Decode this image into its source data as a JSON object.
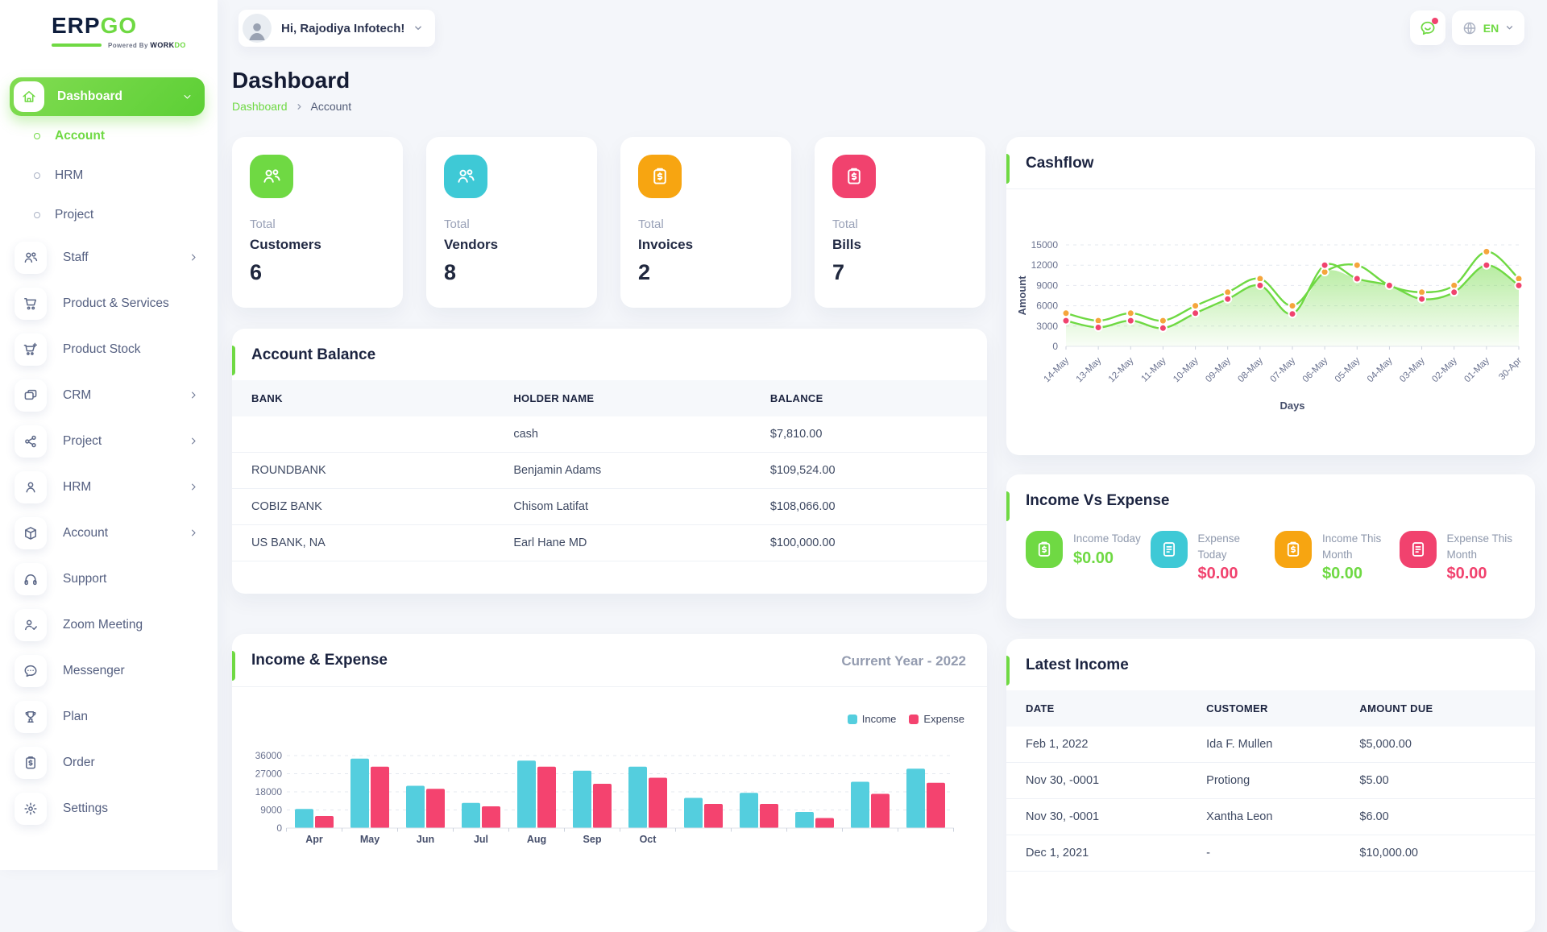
{
  "header": {
    "logo": {
      "text_primary": "ERP",
      "text_accent": "GO",
      "powered_prefix": "Powered By",
      "powered_brand": "WORK",
      "powered_accent": "DO"
    },
    "greeting": "Hi, Rajodiya Infotech!",
    "language": "EN"
  },
  "sidebar": {
    "items": [
      {
        "label": "Dashboard",
        "icon": "home",
        "style": "pill",
        "chevron": "down"
      },
      {
        "label": "Account",
        "style": "sub",
        "active": true
      },
      {
        "label": "HRM",
        "style": "sub"
      },
      {
        "label": "Project",
        "style": "sub"
      },
      {
        "label": "Staff",
        "icon": "users",
        "chevron": "right"
      },
      {
        "label": "Product & Services",
        "icon": "cart"
      },
      {
        "label": "Product Stock",
        "icon": "cart-plus"
      },
      {
        "label": "CRM",
        "icon": "crm",
        "chevron": "right"
      },
      {
        "label": "Project",
        "icon": "share",
        "chevron": "right"
      },
      {
        "label": "HRM",
        "icon": "user",
        "chevron": "right"
      },
      {
        "label": "Account",
        "icon": "box",
        "chevron": "right"
      },
      {
        "label": "Support",
        "icon": "headphones"
      },
      {
        "label": "Zoom Meeting",
        "icon": "user-check"
      },
      {
        "label": "Messenger",
        "icon": "chat"
      },
      {
        "label": "Plan",
        "icon": "trophy"
      },
      {
        "label": "Order",
        "icon": "clipboard-dollar"
      },
      {
        "label": "Settings",
        "icon": "gear"
      }
    ]
  },
  "page": {
    "title": "Dashboard",
    "breadcrumb": [
      "Dashboard",
      "Account"
    ]
  },
  "stat_cards": [
    {
      "prefix": "Total",
      "label": "Customers",
      "value": "6",
      "color": "#6fd943",
      "icon": "users"
    },
    {
      "prefix": "Total",
      "label": "Vendors",
      "value": "8",
      "color": "#3ec9d6",
      "icon": "users"
    },
    {
      "prefix": "Total",
      "label": "Invoices",
      "value": "2",
      "color": "#f7a511",
      "icon": "clipboard-dollar"
    },
    {
      "prefix": "Total",
      "label": "Bills",
      "value": "7",
      "color": "#f1426e",
      "icon": "clipboard-dollar"
    }
  ],
  "cards": {
    "cashflow": {
      "title": "Cashflow"
    },
    "account_balance": {
      "title": "Account Balance",
      "columns": [
        "BANK",
        "HOLDER NAME",
        "BALANCE"
      ],
      "rows": [
        [
          "",
          "cash",
          "$7,810.00"
        ],
        [
          "ROUNDBANK",
          "Benjamin Adams",
          "$109,524.00"
        ],
        [
          "COBIZ BANK",
          "Chisom Latifat",
          "$108,066.00"
        ],
        [
          "US BANK, NA",
          "Earl Hane MD",
          "$100,000.00"
        ]
      ]
    },
    "income_vs_expense": {
      "title": "Income Vs Expense",
      "items": [
        {
          "label": "Income Today",
          "value": "$0.00",
          "icon": "clipboard-dollar",
          "icon_color": "#6fd943",
          "value_color": "#6fd943"
        },
        {
          "label": "Expense Today",
          "value": "$0.00",
          "icon": "file-invoice",
          "icon_color": "#3ec9d6",
          "value_color": "#f1426e"
        },
        {
          "label": "Income This Month",
          "value": "$0.00",
          "icon": "clipboard-dollar",
          "icon_color": "#f7a511",
          "value_color": "#6fd943"
        },
        {
          "label": "Expense This Month",
          "value": "$0.00",
          "icon": "file-invoice",
          "icon_color": "#f1426e",
          "value_color": "#f1426e"
        }
      ]
    },
    "income_expense": {
      "title": "Income & Expense",
      "period": "Current Year - 2022"
    },
    "latest_income": {
      "title": "Latest Income",
      "columns": [
        "DATE",
        "CUSTOMER",
        "AMOUNT DUE"
      ],
      "rows": [
        [
          "Feb 1, 2022",
          "Ida F. Mullen",
          "$5,000.00"
        ],
        [
          "Nov 30, -0001",
          "Protiong",
          "$5.00"
        ],
        [
          "Nov 30, -0001",
          "Xantha Leon",
          "$6.00"
        ],
        [
          "Dec 1, 2021",
          "-",
          "$10,000.00"
        ]
      ]
    }
  },
  "chart_data": [
    {
      "id": "cashflow",
      "type": "area",
      "title": "Cashflow",
      "x": [
        "14-May",
        "13-May",
        "12-May",
        "11-May",
        "10-May",
        "09-May",
        "08-May",
        "07-May",
        "06-May",
        "05-May",
        "04-May",
        "03-May",
        "02-May",
        "01-May",
        "30-Apr"
      ],
      "series": [
        {
          "name": "Income",
          "color": "#f5a53c",
          "values": [
            4900,
            3800,
            4900,
            3800,
            6000,
            8000,
            10000,
            6000,
            11000,
            12000,
            9000,
            8000,
            9000,
            14000,
            10000
          ]
        },
        {
          "name": "Expense",
          "color": "#f0436e",
          "values": [
            3800,
            2800,
            3800,
            2700,
            4900,
            7000,
            9000,
            4800,
            12000,
            10000,
            9000,
            7000,
            8000,
            12000,
            9000
          ]
        }
      ],
      "line_color": "#6fd943",
      "fill_color": "#6fd943",
      "xlabel": "Days",
      "ylabel": "Amount",
      "ylim": [
        0,
        15000
      ],
      "ytick_step": 3000,
      "grid": true,
      "legend_position": "none"
    },
    {
      "id": "income-expense",
      "type": "bar",
      "title": "Income & Expense",
      "subtitle": "Current Year - 2022",
      "categories": [
        "Apr",
        "May",
        "Jun",
        "Jul",
        "Aug",
        "Sep",
        "Oct",
        "",
        "",
        "",
        "",
        ""
      ],
      "series": [
        {
          "name": "Income",
          "color": "#54cede",
          "values": [
            9500,
            34500,
            21000,
            12500,
            33500,
            28500,
            30500,
            15000,
            17500,
            8000,
            23000,
            29500
          ]
        },
        {
          "name": "Expense",
          "color": "#f4436f",
          "values": [
            6000,
            30500,
            19500,
            10800,
            30500,
            22000,
            25000,
            12000,
            12000,
            5000,
            17000,
            22500
          ]
        }
      ],
      "xlabel": "",
      "ylabel": "",
      "ylim": [
        0,
        36000
      ],
      "ytick_step": 9000,
      "grid": true,
      "legend_position": "top-right"
    }
  ]
}
